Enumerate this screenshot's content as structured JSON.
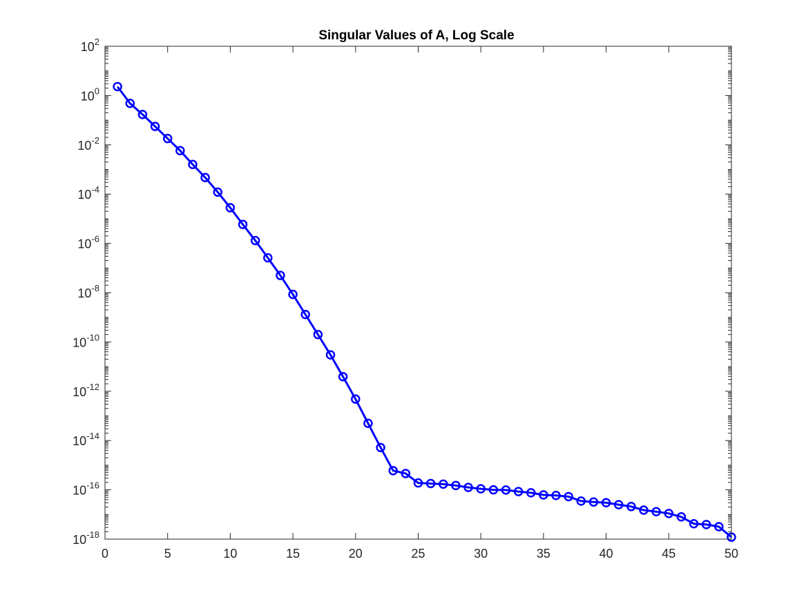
{
  "chart_data": {
    "type": "line",
    "title": "Singular Values of A, Log Scale",
    "xlabel": "",
    "ylabel": "",
    "xlim": [
      0,
      50
    ],
    "ylim": [
      1e-18,
      100
    ],
    "yscale": "log",
    "grid": false,
    "legend": "none",
    "marker": "circle",
    "line_color": "#0000ff",
    "x_ticks": [
      0,
      5,
      10,
      15,
      20,
      25,
      30,
      35,
      40,
      45,
      50
    ],
    "y_ticks": [
      {
        "base": "10",
        "exp": "-18"
      },
      {
        "base": "10",
        "exp": "-16"
      },
      {
        "base": "10",
        "exp": "-14"
      },
      {
        "base": "10",
        "exp": "-12"
      },
      {
        "base": "10",
        "exp": "-10"
      },
      {
        "base": "10",
        "exp": "-8"
      },
      {
        "base": "10",
        "exp": "-6"
      },
      {
        "base": "10",
        "exp": "-4"
      },
      {
        "base": "10",
        "exp": "-2"
      },
      {
        "base": "10",
        "exp": "0"
      },
      {
        "base": "10",
        "exp": "2"
      }
    ],
    "x": [
      1,
      2,
      3,
      4,
      5,
      6,
      7,
      8,
      9,
      10,
      11,
      12,
      13,
      14,
      15,
      16,
      17,
      18,
      19,
      20,
      21,
      22,
      23,
      24,
      25,
      26,
      27,
      28,
      29,
      30,
      31,
      32,
      33,
      34,
      35,
      36,
      37,
      38,
      39,
      40,
      41,
      42,
      43,
      44,
      45,
      46,
      47,
      48,
      49,
      50
    ],
    "values": [
      2.3,
      0.48,
      0.17,
      0.056,
      0.018,
      0.0058,
      0.0016,
      0.00047,
      0.00012,
      2.8e-05,
      5.9e-06,
      1.3e-06,
      2.6e-07,
      5e-08,
      8.5e-09,
      1.3e-09,
      2e-10,
      3e-11,
      3.9e-12,
      4.8e-13,
      5e-14,
      5.2e-15,
      6e-16,
      4.6e-16,
      1.9e-16,
      1.8e-16,
      1.7e-16,
      1.5e-16,
      1.25e-16,
      1.1e-16,
      1e-16,
      9.8e-17,
      8.5e-17,
      7.6e-17,
      6.2e-17,
      5.9e-17,
      5.3e-17,
      3.5e-17,
      3.2e-17,
      3e-17,
      2.5e-17,
      2.1e-17,
      1.5e-17,
      1.3e-17,
      1.1e-17,
      8e-18,
      4.2e-18,
      3.9e-18,
      3.2e-18,
      1.2e-18
    ]
  }
}
